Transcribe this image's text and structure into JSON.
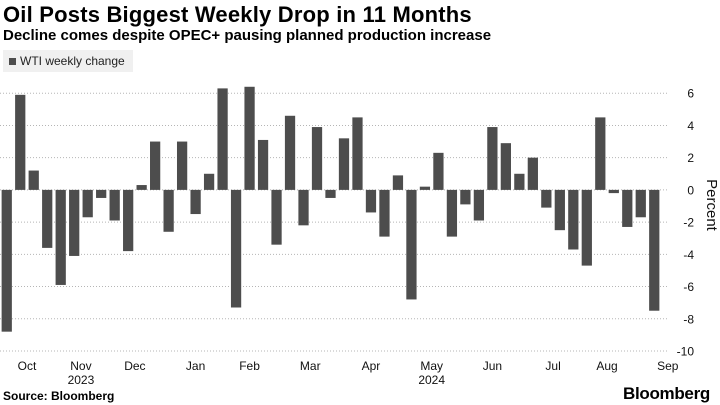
{
  "header": {
    "title": "Oil Posts Biggest Weekly Drop in 11 Months",
    "subtitle": "Decline comes despite OPEC+ pausing planned production increase"
  },
  "footer": {
    "source": "Source: Bloomberg",
    "brand": "Bloomberg"
  },
  "colors": {
    "bar": "#4d4d4d",
    "grid": "#b5b5b5",
    "axis_text": "#111111",
    "legend_bg": "#f0f0f0"
  },
  "chart_data": {
    "type": "bar",
    "title": "Oil Posts Biggest Weekly Drop in 11 Months",
    "subtitle": "Decline comes despite OPEC+ pausing planned production increase",
    "xlabel": "",
    "ylabel": "Percent",
    "ylim": [
      -10,
      8
    ],
    "yticks": [
      -10,
      -8,
      -6,
      -4,
      -2,
      0,
      2,
      4,
      6
    ],
    "grid": "horizontal dotted",
    "y_axis_side": "right",
    "legend_position": "top-left",
    "series": [
      {
        "name": "WTI weekly change",
        "values": [
          -8.8,
          5.9,
          1.2,
          -3.6,
          -5.9,
          -4.1,
          -1.7,
          -0.5,
          -1.9,
          -3.8,
          0.3,
          3.0,
          -2.6,
          3.0,
          -1.5,
          1.0,
          6.3,
          -7.3,
          6.4,
          3.1,
          -3.4,
          4.6,
          -2.2,
          3.9,
          -0.5,
          3.2,
          4.5,
          -1.4,
          -2.9,
          0.9,
          -6.8,
          0.2,
          2.3,
          -2.9,
          -0.9,
          -1.9,
          3.9,
          2.9,
          1.0,
          2.0,
          -1.1,
          -2.5,
          -3.7,
          -4.7,
          4.5,
          -0.2,
          -2.3,
          -1.7,
          -7.5
        ]
      }
    ],
    "month_labels": [
      "Oct",
      "Nov",
      "Dec",
      "Jan",
      "Feb",
      "Mar",
      "Apr",
      "May",
      "Jun",
      "Jul",
      "Aug",
      "Sep"
    ],
    "month_label_bar_index": [
      1.5,
      5.5,
      9.5,
      14.0,
      18.0,
      22.5,
      27.0,
      31.5,
      36.0,
      40.5,
      44.5,
      49.0
    ],
    "year_labels": [
      {
        "label": "2023",
        "under_month": "Nov"
      },
      {
        "label": "2024",
        "under_month": "May"
      }
    ]
  }
}
